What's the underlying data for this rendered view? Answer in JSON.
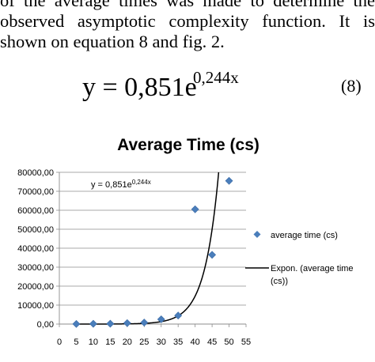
{
  "paper": {
    "lines": [
      "of the average times was made to determine the",
      "observed asymptotic complexity function. It is",
      "shown on equation 8 and fig. 2."
    ],
    "equation": {
      "lhs": "y = 0,851e",
      "exponent": "0,244x",
      "number": "(8)"
    }
  },
  "chart_data": {
    "type": "scatter",
    "title": "Average Time (cs)",
    "x": [
      5,
      10,
      15,
      20,
      25,
      30,
      35,
      40,
      45,
      50
    ],
    "series": [
      {
        "name": "average time (cs)",
        "marker": "diamond",
        "color": "#4a7ebb",
        "values": [
          50,
          150,
          200,
          500,
          800,
          2500,
          4500,
          60500,
          36500,
          75500
        ]
      },
      {
        "name": "Expon. (average time (cs))",
        "type": "trendline",
        "color": "#000000",
        "fit": {
          "a": 0.851,
          "b": 0.244
        }
      }
    ],
    "equation_label": {
      "base": "y = 0,851e",
      "exponent": "0,244x"
    },
    "xlim": [
      0,
      55
    ],
    "ylim": [
      0,
      80000
    ],
    "xticks": [
      "0",
      "5",
      "10",
      "15",
      "20",
      "25",
      "30",
      "35",
      "40",
      "45",
      "50",
      "55"
    ],
    "yticks": [
      "0,00",
      "10000,00",
      "20000,00",
      "30000,00",
      "40000,00",
      "50000,00",
      "60000,00",
      "70000,00",
      "80000,00"
    ],
    "grid": true,
    "legend": "right",
    "legend_entries": [
      {
        "lines": [
          "average time (cs)"
        ]
      },
      {
        "lines": [
          "Expon. (average time",
          "(cs))"
        ]
      }
    ]
  }
}
